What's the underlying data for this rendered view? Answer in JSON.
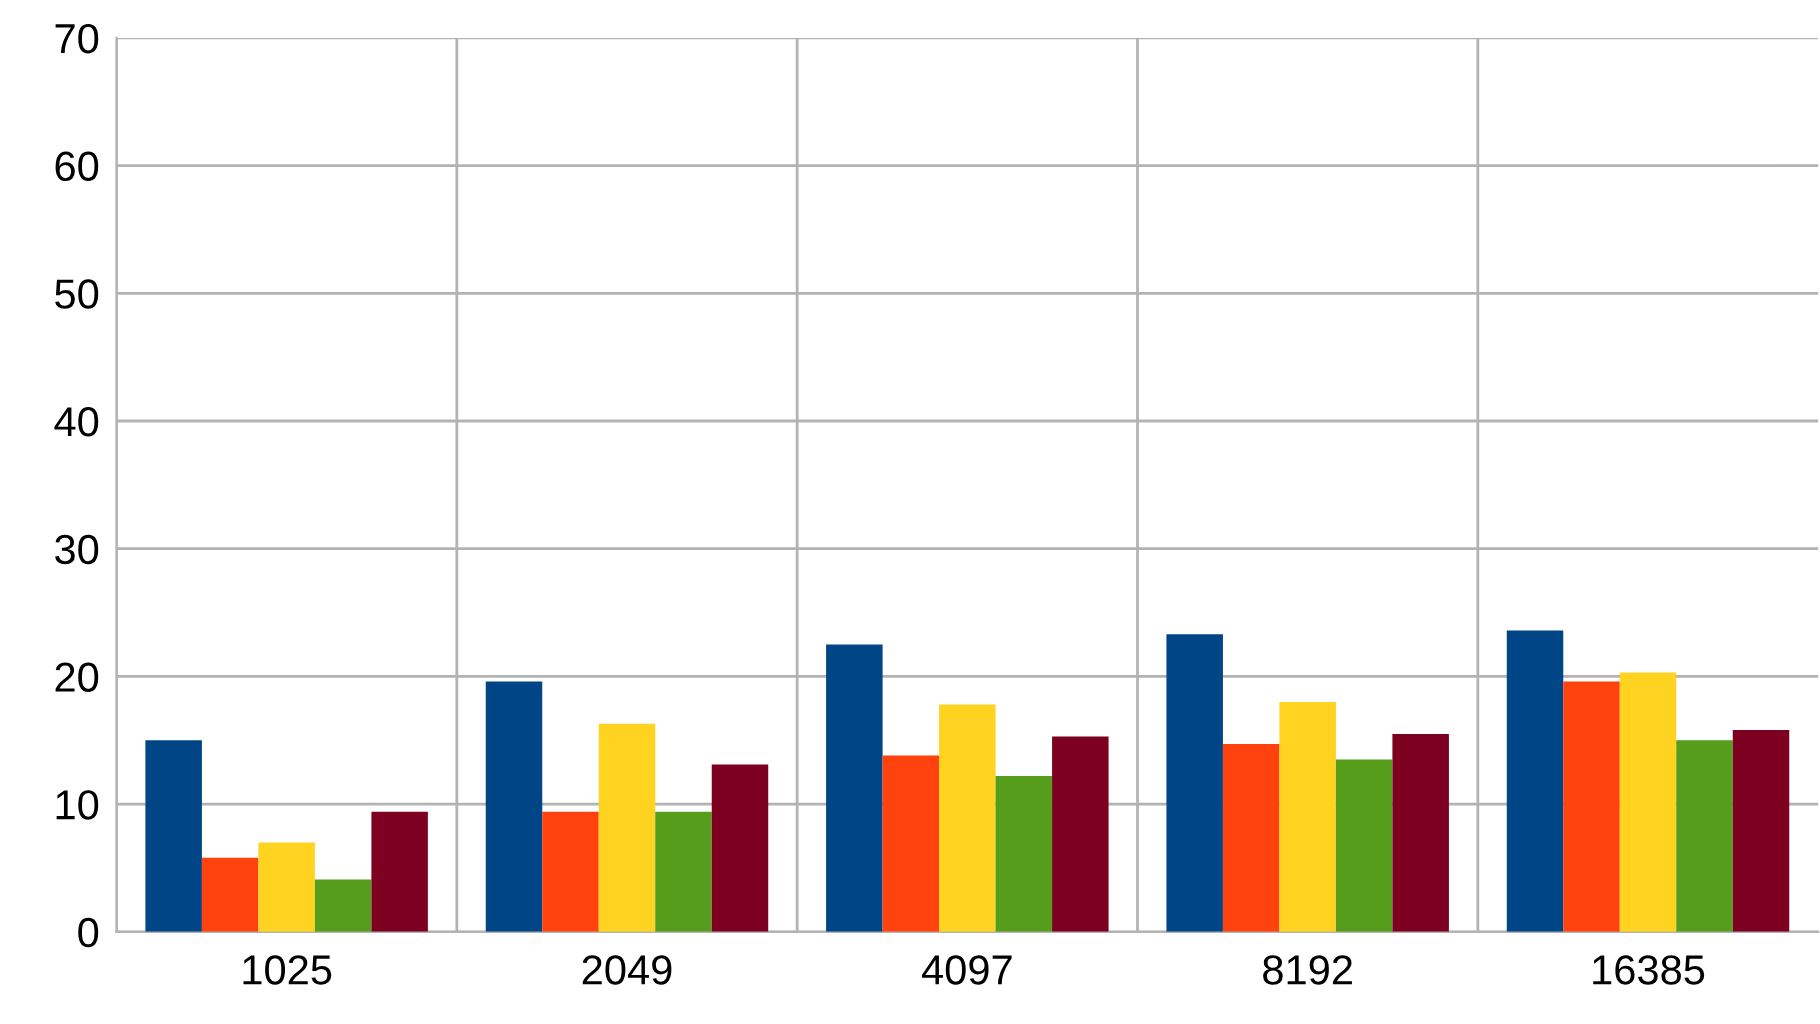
{
  "chart_data": {
    "type": "bar",
    "categories": [
      "1025",
      "2049",
      "4097",
      "8192",
      "16385"
    ],
    "series": [
      {
        "color": "#004586",
        "values": [
          15.0,
          19.6,
          22.5,
          23.3,
          23.6
        ]
      },
      {
        "color": "#ff420e",
        "values": [
          5.8,
          9.4,
          13.8,
          14.7,
          19.6
        ]
      },
      {
        "color": "#ffd320",
        "values": [
          7.0,
          16.3,
          17.8,
          18.0,
          20.3
        ]
      },
      {
        "color": "#579d1c",
        "values": [
          4.1,
          9.4,
          12.2,
          13.5,
          15.0
        ]
      },
      {
        "color": "#7e0021",
        "values": [
          9.4,
          13.1,
          15.3,
          15.5,
          15.8
        ]
      }
    ],
    "ylim": [
      0,
      70
    ],
    "yticks": [
      0,
      10,
      20,
      30,
      40,
      50,
      60,
      70
    ],
    "grid": true
  }
}
